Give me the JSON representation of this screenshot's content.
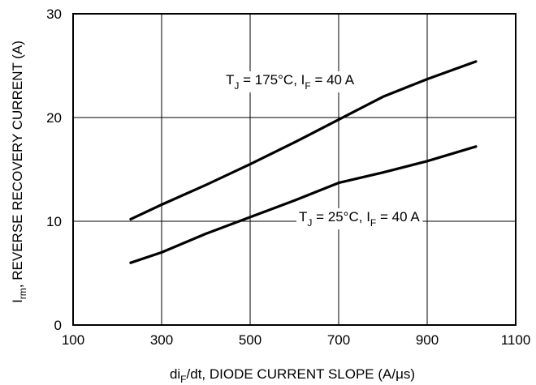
{
  "chart_data": {
    "type": "line",
    "xlabel": {
      "pre": "di",
      "sub": "F",
      "post": "/dt, DIODE CURRENT SLOPE (A/μs)"
    },
    "ylabel": {
      "pre": "I",
      "sub": "rm",
      "post": ", REVERSE RECOVERY CURRENT (A)"
    },
    "xlim": [
      100,
      1100
    ],
    "ylim": [
      0,
      30
    ],
    "xticks": [
      "100",
      "300",
      "500",
      "700",
      "900",
      "1100"
    ],
    "yticks": [
      "0",
      "10",
      "20",
      "30"
    ],
    "grid": true,
    "series": [
      {
        "label": {
          "t": "T",
          "tsub": "J",
          "mid": " = 175°C, I",
          "isub": "F",
          "post": " = 40 A"
        },
        "points": [
          [
            230,
            10.2
          ],
          [
            300,
            11.6
          ],
          [
            400,
            13.5
          ],
          [
            500,
            15.5
          ],
          [
            600,
            17.6
          ],
          [
            700,
            19.8
          ],
          [
            800,
            22.0
          ],
          [
            900,
            23.7
          ],
          [
            1010,
            25.4
          ]
        ]
      },
      {
        "label": {
          "t": "T",
          "tsub": "J",
          "mid": " = 25°C, I",
          "isub": "F",
          "post": " = 40 A"
        },
        "points": [
          [
            230,
            6.0
          ],
          [
            300,
            7.0
          ],
          [
            400,
            8.8
          ],
          [
            500,
            10.4
          ],
          [
            600,
            12.0
          ],
          [
            700,
            13.7
          ],
          [
            800,
            14.7
          ],
          [
            900,
            15.8
          ],
          [
            1010,
            17.2
          ]
        ]
      }
    ]
  }
}
